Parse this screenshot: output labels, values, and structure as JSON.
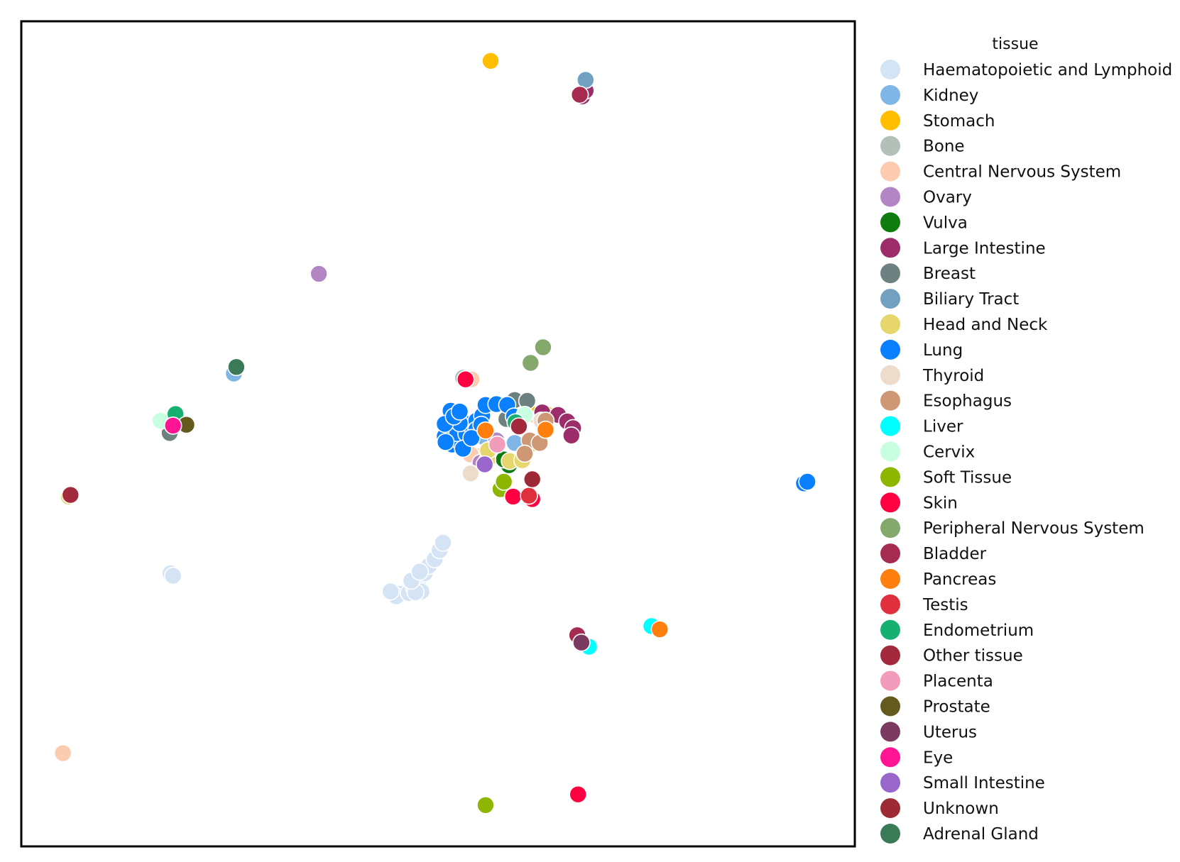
{
  "chart_data": {
    "type": "scatter",
    "title": "",
    "xlabel": "",
    "ylabel": "",
    "xlim": [
      0,
      100
    ],
    "ylim": [
      0,
      100
    ],
    "grid": false,
    "axes_ticks": false,
    "legend": {
      "title": "tissue",
      "placement": "outside-right",
      "entries": [
        {
          "name": "Haematopoietic and Lymphoid",
          "color": "#d5e4f5"
        },
        {
          "name": "Kidney",
          "color": "#7fb6e6"
        },
        {
          "name": "Stomach",
          "color": "#ffbf00"
        },
        {
          "name": "Bone",
          "color": "#b2c0b7"
        },
        {
          "name": "Central Nervous System",
          "color": "#fccbb0"
        },
        {
          "name": "Ovary",
          "color": "#b186c2"
        },
        {
          "name": "Vulva",
          "color": "#0e7c0e"
        },
        {
          "name": "Large Intestine",
          "color": "#9c2d6a"
        },
        {
          "name": "Breast",
          "color": "#6d8280"
        },
        {
          "name": "Biliary Tract",
          "color": "#72a0c1"
        },
        {
          "name": "Head and Neck",
          "color": "#e6d66b"
        },
        {
          "name": "Lung",
          "color": "#0a80ff"
        },
        {
          "name": "Thyroid",
          "color": "#eddccb"
        },
        {
          "name": "Esophagus",
          "color": "#cf9875"
        },
        {
          "name": "Liver",
          "color": "#00ffff"
        },
        {
          "name": "Cervix",
          "color": "#c8ffe0"
        },
        {
          "name": "Soft Tissue",
          "color": "#8db600"
        },
        {
          "name": "Skin",
          "color": "#ff0040"
        },
        {
          "name": "Peripheral Nervous System",
          "color": "#85a86c"
        },
        {
          "name": "Bladder",
          "color": "#a62b50"
        },
        {
          "name": "Pancreas",
          "color": "#ff7f0e"
        },
        {
          "name": "Testis",
          "color": "#e0303e"
        },
        {
          "name": "Endometrium",
          "color": "#15b072"
        },
        {
          "name": "Other tissue",
          "color": "#a22a3c"
        },
        {
          "name": "Placenta",
          "color": "#f19cbb"
        },
        {
          "name": "Prostate",
          "color": "#645a1e"
        },
        {
          "name": "Uterus",
          "color": "#7b3b60"
        },
        {
          "name": "Eye",
          "color": "#ff1493"
        },
        {
          "name": "Small Intestine",
          "color": "#9966cc"
        },
        {
          "name": "Unknown",
          "color": "#9e2a35"
        },
        {
          "name": "Adrenal Gland",
          "color": "#3b7a57"
        }
      ]
    },
    "series": [
      {
        "name": "Haematopoietic and Lymphoid",
        "points": [
          [
            51.8,
            50.4
          ],
          [
            17.9,
            33.1
          ],
          [
            18.2,
            32.8
          ],
          [
            45.4,
            30.6
          ],
          [
            45.0,
            30.3
          ],
          [
            46.5,
            30.7
          ],
          [
            47.1,
            31.4
          ],
          [
            47.6,
            32.1
          ],
          [
            48.4,
            33.1
          ],
          [
            48.9,
            34.0
          ],
          [
            49.6,
            34.8
          ],
          [
            50.2,
            35.9
          ],
          [
            50.6,
            36.8
          ],
          [
            48.0,
            30.9
          ],
          [
            47.3,
            30.8
          ],
          [
            44.3,
            30.9
          ],
          [
            46.8,
            32.2
          ],
          [
            47.8,
            33.3
          ]
        ]
      },
      {
        "name": "Kidney",
        "points": [
          [
            25.5,
            57.3
          ],
          [
            58.2,
            46.8
          ],
          [
            59.2,
            48.9
          ],
          [
            55.5,
            49.6
          ]
        ]
      },
      {
        "name": "Stomach",
        "points": [
          [
            56.3,
            95.2
          ],
          [
            61.2,
            52.4
          ],
          [
            63.0,
            52.4
          ]
        ]
      },
      {
        "name": "Bone",
        "points": [
          [
            53.0,
            56.8
          ],
          [
            16.8,
            51.7
          ],
          [
            59.6,
            51.3
          ]
        ]
      },
      {
        "name": "Central Nervous System",
        "points": [
          [
            5.0,
            11.3
          ],
          [
            54.0,
            56.6
          ],
          [
            53.6,
            48.8
          ],
          [
            54.5,
            47.4
          ],
          [
            55.0,
            47.3
          ],
          [
            53.9,
            47.5
          ]
        ]
      },
      {
        "name": "Ovary",
        "points": [
          [
            35.7,
            69.4
          ],
          [
            57.0,
            49.2
          ],
          [
            55.1,
            46.5
          ]
        ]
      },
      {
        "name": "Vulva",
        "points": [
          [
            58.5,
            46.2
          ],
          [
            57.9,
            46.9
          ]
        ]
      },
      {
        "name": "Large Intestine",
        "points": [
          [
            67.3,
            90.9
          ],
          [
            67.7,
            91.6
          ],
          [
            62.5,
            52.6
          ],
          [
            64.4,
            52.3
          ],
          [
            65.5,
            51.5
          ],
          [
            66.2,
            50.7
          ],
          [
            66.0,
            49.8
          ]
        ]
      },
      {
        "name": "Breast",
        "points": [
          [
            17.8,
            50.1
          ],
          [
            59.2,
            54.1
          ],
          [
            60.7,
            54.0
          ],
          [
            58.2,
            51.8
          ]
        ]
      },
      {
        "name": "Biliary Tract",
        "points": [
          [
            67.7,
            92.9
          ]
        ]
      },
      {
        "name": "Head and Neck",
        "points": [
          [
            5.7,
            42.4
          ],
          [
            55.9,
            46.8
          ],
          [
            58.6,
            46.7
          ],
          [
            60.1,
            46.8
          ],
          [
            61.2,
            48.8
          ],
          [
            56.0,
            48.0
          ]
        ]
      },
      {
        "name": "Lung",
        "points": [
          [
            93.9,
            44.0
          ],
          [
            94.3,
            44.2
          ],
          [
            51.4,
            51.7
          ],
          [
            52.0,
            50.8
          ],
          [
            50.8,
            49.7
          ],
          [
            51.7,
            48.7
          ],
          [
            52.6,
            49.1
          ],
          [
            52.3,
            50.1
          ],
          [
            53.4,
            50.0
          ],
          [
            53.7,
            51.2
          ],
          [
            54.6,
            51.6
          ],
          [
            55.3,
            52.2
          ],
          [
            55.7,
            53.5
          ],
          [
            57.0,
            53.6
          ],
          [
            58.3,
            53.5
          ],
          [
            59.1,
            52.1
          ],
          [
            53.0,
            48.2
          ],
          [
            50.9,
            49.0
          ],
          [
            52.6,
            51.3
          ],
          [
            54.6,
            50.5
          ],
          [
            55.2,
            51.1
          ],
          [
            54.0,
            49.5
          ],
          [
            51.5,
            52.8
          ],
          [
            50.8,
            51.2
          ],
          [
            51.9,
            52.1
          ],
          [
            52.6,
            52.7
          ]
        ]
      },
      {
        "name": "Thyroid",
        "points": [
          [
            53.9,
            45.2
          ],
          [
            62.4,
            51.6
          ]
        ]
      },
      {
        "name": "Esophagus",
        "points": [
          [
            62.9,
            51.6
          ],
          [
            61.0,
            49.2
          ],
          [
            62.2,
            48.9
          ],
          [
            60.4,
            47.6
          ]
        ]
      },
      {
        "name": "Liver",
        "points": [
          [
            75.6,
            26.7
          ],
          [
            68.1,
            24.2
          ]
        ]
      },
      {
        "name": "Cervix",
        "points": [
          [
            16.7,
            51.6
          ],
          [
            60.4,
            52.3
          ]
        ]
      },
      {
        "name": "Soft Tissue",
        "points": [
          [
            55.7,
            5.0
          ],
          [
            57.5,
            43.3
          ],
          [
            57.9,
            44.2
          ]
        ]
      },
      {
        "name": "Skin",
        "points": [
          [
            66.8,
            6.3
          ],
          [
            59.0,
            42.4
          ],
          [
            61.3,
            42.1
          ],
          [
            53.3,
            56.6
          ]
        ]
      },
      {
        "name": "Peripheral Nervous System",
        "points": [
          [
            62.6,
            60.5
          ],
          [
            61.1,
            58.6
          ]
        ]
      },
      {
        "name": "Bladder",
        "points": [
          [
            67.0,
            91.1
          ],
          [
            66.7,
            25.6
          ]
        ]
      },
      {
        "name": "Pancreas",
        "points": [
          [
            76.6,
            26.3
          ],
          [
            55.7,
            50.4
          ],
          [
            62.9,
            50.5
          ]
        ]
      },
      {
        "name": "Testis",
        "points": [
          [
            60.9,
            42.5
          ]
        ]
      },
      {
        "name": "Endometrium",
        "points": [
          [
            18.5,
            52.4
          ],
          [
            59.3,
            51.4
          ]
        ]
      },
      {
        "name": "Other tissue",
        "points": [
          [
            59.7,
            50.9
          ],
          [
            5.9,
            42.6
          ]
        ]
      },
      {
        "name": "Placenta",
        "points": [
          [
            57.1,
            48.7
          ]
        ]
      },
      {
        "name": "Prostate",
        "points": [
          [
            19.8,
            51.1
          ]
        ]
      },
      {
        "name": "Uterus",
        "points": [
          [
            67.2,
            24.7
          ]
        ]
      },
      {
        "name": "Eye",
        "points": [
          [
            18.2,
            51.0
          ]
        ]
      },
      {
        "name": "Small Intestine",
        "points": [
          [
            55.6,
            46.3
          ]
        ]
      },
      {
        "name": "Unknown",
        "points": [
          [
            61.3,
            44.5
          ]
        ]
      },
      {
        "name": "Adrenal Gland",
        "points": [
          [
            25.8,
            58.1
          ]
        ]
      }
    ]
  }
}
